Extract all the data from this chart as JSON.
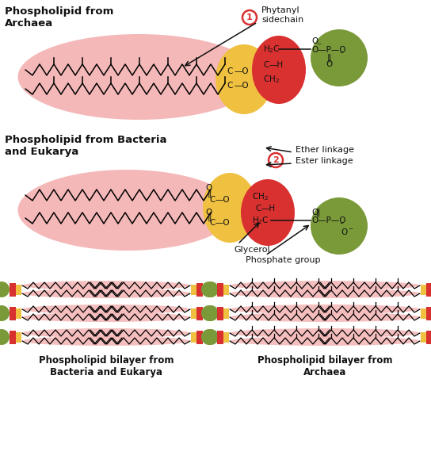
{
  "title_archaea": "Phospholipid from\nArchaea",
  "title_bacteria": "Phospholipid from Bacteria\nand Eukarya",
  "label_phytanyl": "Phytanyl\nsidechain",
  "label_ether": "Ether linkage",
  "label_ester": "Ester linkage",
  "label_glycerol": "Glycerol",
  "label_phosphate": "Phosphate group",
  "label_bilayer_bact": "Phospholipid bilayer from\nBacteria and Eukarya",
  "label_bilayer_arch": "Phospholipid bilayer from\nArchaea",
  "color_pink_ellipse": "#f5b8b8",
  "color_yellow": "#f0c040",
  "color_red": "#d93030",
  "color_green": "#7a9a3a",
  "color_dark": "#111111",
  "color_white": "#ffffff",
  "figsize": [
    5.44,
    5.7
  ],
  "dpi": 100
}
